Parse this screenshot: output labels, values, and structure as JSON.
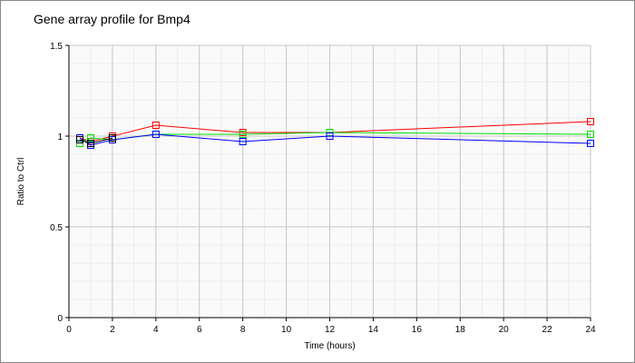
{
  "chart_data": {
    "type": "line",
    "title": "Gene array profile for Bmp4",
    "xlabel": "Time (hours)",
    "ylabel": "Ratio to Ctrl",
    "xlim": [
      0,
      24
    ],
    "ylim": [
      0,
      1.5
    ],
    "xticks": [
      0,
      2,
      4,
      6,
      8,
      10,
      12,
      14,
      16,
      18,
      20,
      22,
      24
    ],
    "yticks": [
      0,
      0.5,
      1,
      1.5
    ],
    "ytick_labels": [
      "0",
      "0.5",
      "1",
      "1.5"
    ],
    "grid": true,
    "x": [
      0.5,
      1,
      2,
      4,
      8,
      12,
      24
    ],
    "series": [
      {
        "color": "#ff0000",
        "values": [
          0.99,
          0.97,
          1.0,
          1.06,
          1.02,
          1.02,
          1.08
        ]
      },
      {
        "color": "#00dd00",
        "values": [
          0.96,
          0.99,
          0.98,
          1.01,
          1.01,
          1.02,
          1.01
        ]
      },
      {
        "color": "#0000ff",
        "values": [
          0.99,
          0.95,
          0.98,
          1.01,
          0.97,
          1.0,
          0.96
        ]
      },
      {
        "color": "#000000",
        "values": [
          0.98,
          0.96,
          0.99,
          null,
          null,
          null,
          null
        ]
      }
    ]
  }
}
